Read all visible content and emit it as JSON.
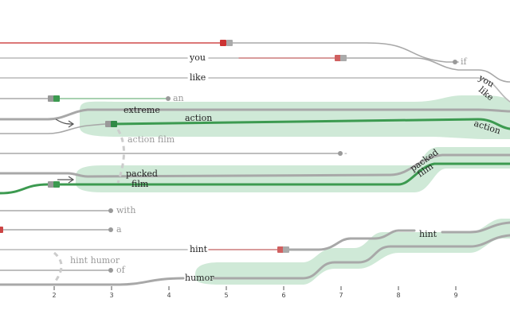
{
  "diagram": {
    "tokens": {
      "you": "you",
      "like": "like",
      "extreme": "extreme",
      "action": "action",
      "action_film": "action film",
      "packed": "packed",
      "film": "film",
      "with": "with",
      "a": "a",
      "hint": "hint",
      "hint_humor": "hint humor",
      "of": "of",
      "humor": "humor",
      "an": "an",
      "if": "if",
      "dash": "-",
      "right_you": "you",
      "right_like": "like",
      "right_action": "action",
      "right_packed": "packed",
      "right_film": "film",
      "right_hint": "hint"
    },
    "axis": {
      "ticks": [
        "2",
        "3",
        "4",
        "5",
        "6",
        "7",
        "8",
        "9"
      ]
    },
    "colors": {
      "band": "#cfe9d7",
      "green": "#3c9a50",
      "red": "#d04a4a",
      "gray": "#a8a8a8",
      "dashed": "#cccccc"
    }
  }
}
